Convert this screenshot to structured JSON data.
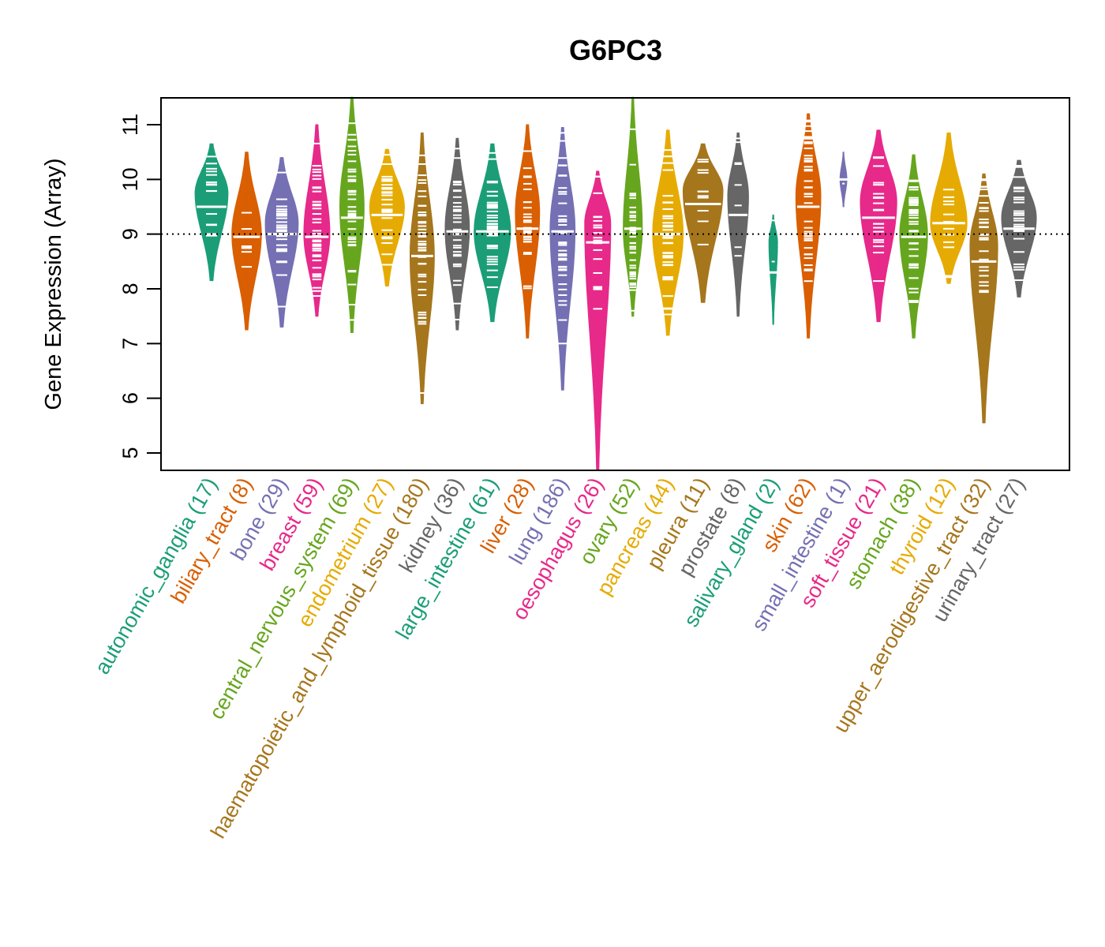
{
  "chart_data": {
    "type": "violin",
    "title": "G6PC3",
    "xlabel": "",
    "ylabel": "Gene Expression (Array)",
    "ylim": [
      4.7,
      11.5
    ],
    "yticks": [
      5,
      6,
      7,
      8,
      9,
      10,
      11
    ],
    "reference_line": {
      "value": 9.0,
      "style": "dotted",
      "color": "#000000"
    },
    "grid": false,
    "legend": "none",
    "categories": [
      {
        "name": "autonomic_ganglia",
        "n": 17,
        "label": "autonomic_ganglia (17)",
        "color": "#1B9E77",
        "min": 8.15,
        "max": 10.65,
        "median": 9.5,
        "mode": 9.75,
        "rel_width": 0.95
      },
      {
        "name": "biliary_tract",
        "n": 8,
        "label": "biliary_tract (8)",
        "color": "#D95F02",
        "min": 7.25,
        "max": 10.5,
        "median": 8.95,
        "mode": 9.0,
        "rel_width": 0.85
      },
      {
        "name": "bone",
        "n": 29,
        "label": "bone (29)",
        "color": "#7570B3",
        "min": 7.3,
        "max": 10.4,
        "median": 9.0,
        "mode": 9.2,
        "rel_width": 0.95
      },
      {
        "name": "breast",
        "n": 59,
        "label": "breast (59)",
        "color": "#E7298A",
        "min": 7.5,
        "max": 11.0,
        "median": 8.95,
        "mode": 9.0,
        "rel_width": 0.75
      },
      {
        "name": "central_nervous_system",
        "n": 69,
        "label": "central_nervous_system (69)",
        "color": "#66A61E",
        "min": 7.2,
        "max": 11.5,
        "median": 9.3,
        "mode": 9.5,
        "rel_width": 0.7
      },
      {
        "name": "endometrium",
        "n": 27,
        "label": "endometrium (27)",
        "color": "#E6AB02",
        "min": 8.05,
        "max": 10.55,
        "median": 9.35,
        "mode": 9.5,
        "rel_width": 1.0
      },
      {
        "name": "haematopoietic_and_lymphoid_tissue",
        "n": 180,
        "label": "haematopoietic_and_lymphoid_tissue (180)",
        "color": "#A6761D",
        "min": 5.9,
        "max": 10.85,
        "median": 8.6,
        "mode": 8.6,
        "rel_width": 0.7
      },
      {
        "name": "kidney",
        "n": 36,
        "label": "kidney (36)",
        "color": "#666666",
        "min": 7.25,
        "max": 10.75,
        "median": 9.05,
        "mode": 9.1,
        "rel_width": 0.7
      },
      {
        "name": "large_intestine",
        "n": 61,
        "label": "large_intestine (61)",
        "color": "#1B9E77",
        "min": 7.4,
        "max": 10.65,
        "median": 9.05,
        "mode": 9.05,
        "rel_width": 1.05
      },
      {
        "name": "liver",
        "n": 28,
        "label": "liver (28)",
        "color": "#D95F02",
        "min": 7.1,
        "max": 11.0,
        "median": 9.1,
        "mode": 9.4,
        "rel_width": 0.7
      },
      {
        "name": "lung",
        "n": 186,
        "label": "lung (186)",
        "color": "#7570B3",
        "min": 6.15,
        "max": 10.95,
        "median": 9.05,
        "mode": 9.1,
        "rel_width": 0.72
      },
      {
        "name": "oesophagus",
        "n": 26,
        "label": "oesophagus (26)",
        "color": "#E7298A",
        "min": 4.7,
        "max": 10.15,
        "median": 8.85,
        "mode": 9.2,
        "rel_width": 0.75
      },
      {
        "name": "ovary",
        "n": 52,
        "label": "ovary (52)",
        "color": "#66A61E",
        "min": 7.5,
        "max": 11.5,
        "median": 9.1,
        "mode": 9.1,
        "rel_width": 0.55
      },
      {
        "name": "pancreas",
        "n": 44,
        "label": "pancreas (44)",
        "color": "#E6AB02",
        "min": 7.15,
        "max": 10.9,
        "median": 9.0,
        "mode": 9.0,
        "rel_width": 0.88
      },
      {
        "name": "pleura",
        "n": 11,
        "label": "pleura (11)",
        "color": "#A6761D",
        "min": 7.75,
        "max": 10.65,
        "median": 9.55,
        "mode": 9.8,
        "rel_width": 1.15
      },
      {
        "name": "prostate",
        "n": 8,
        "label": "prostate (8)",
        "color": "#666666",
        "min": 7.5,
        "max": 10.85,
        "median": 9.35,
        "mode": 9.7,
        "rel_width": 0.6
      },
      {
        "name": "salivary_gland",
        "n": 2,
        "label": "salivary_gland (2)",
        "color": "#1B9E77",
        "min": 7.35,
        "max": 9.35,
        "median": 8.3,
        "mode": 8.85,
        "rel_width": 0.25
      },
      {
        "name": "skin",
        "n": 62,
        "label": "skin (62)",
        "color": "#D95F02",
        "min": 7.1,
        "max": 11.2,
        "median": 9.5,
        "mode": 9.7,
        "rel_width": 0.72
      },
      {
        "name": "small_intestine",
        "n": 1,
        "label": "small_intestine (1)",
        "color": "#7570B3",
        "min": 9.5,
        "max": 10.5,
        "median": 10.0,
        "mode": 10.0,
        "rel_width": 0.2
      },
      {
        "name": "soft_tissue",
        "n": 21,
        "label": "soft_tissue (21)",
        "color": "#E7298A",
        "min": 7.4,
        "max": 10.9,
        "median": 9.3,
        "mode": 9.6,
        "rel_width": 1.05
      },
      {
        "name": "stomach",
        "n": 38,
        "label": "stomach (38)",
        "color": "#66A61E",
        "min": 7.1,
        "max": 10.45,
        "median": 8.95,
        "mode": 9.0,
        "rel_width": 0.8
      },
      {
        "name": "thyroid",
        "n": 12,
        "label": "thyroid (12)",
        "color": "#E6AB02",
        "min": 8.1,
        "max": 10.85,
        "median": 9.2,
        "mode": 9.2,
        "rel_width": 1.05
      },
      {
        "name": "upper_aerodigestive_tract",
        "n": 32,
        "label": "upper_aerodigestive_tract (32)",
        "color": "#A6761D",
        "min": 5.55,
        "max": 10.1,
        "median": 8.5,
        "mode": 8.8,
        "rel_width": 0.8
      },
      {
        "name": "urinary_tract",
        "n": 27,
        "label": "urinary_tract (27)",
        "color": "#666666",
        "min": 7.85,
        "max": 10.35,
        "median": 9.1,
        "mode": 9.3,
        "rel_width": 1.0
      }
    ]
  }
}
